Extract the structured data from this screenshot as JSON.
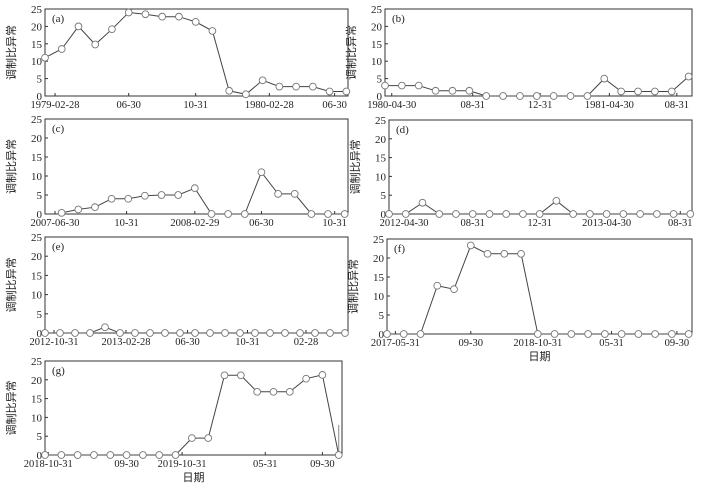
{
  "chart_data": [
    {
      "type": "line",
      "panel_label": "(a)",
      "ylabel": "调制比异常",
      "xlabel": "",
      "ylim": [
        0,
        25
      ],
      "yticks": [
        0,
        5,
        10,
        15,
        20,
        25
      ],
      "xlim": [
        0,
        18.1
      ],
      "x": [
        0,
        1,
        2,
        3,
        4,
        5,
        6,
        7,
        8,
        9,
        10,
        11,
        12,
        13,
        14,
        15,
        16,
        17,
        18
      ],
      "values": [
        11,
        13.5,
        20,
        14.8,
        19.2,
        24,
        23.5,
        22.8,
        22.8,
        21.3,
        18.7,
        1.5,
        0.5,
        4.5,
        2.7,
        2.7,
        2.7,
        1.3,
        1.3
      ],
      "xticks": [
        0.6,
        5,
        9,
        13.4,
        17.3
      ],
      "xticklabels": [
        "1979-02-28",
        "06-30",
        "10-31",
        "1980-02-28",
        "06-30"
      ]
    },
    {
      "type": "line",
      "panel_label": "(b)",
      "ylabel": "调制比异常",
      "xlabel": "",
      "ylim": [
        0,
        25
      ],
      "yticks": [
        0,
        5,
        10,
        15,
        20,
        25
      ],
      "xlim": [
        0,
        18.2
      ],
      "x": [
        0,
        1,
        2,
        3,
        4,
        5,
        6,
        7,
        8,
        9,
        10,
        11,
        12,
        13,
        14,
        15,
        16,
        17,
        18
      ],
      "values": [
        3,
        3,
        3,
        1.5,
        1.5,
        1.5,
        0,
        0,
        0,
        0,
        0,
        0,
        0,
        5,
        1.3,
        1.3,
        1.3,
        1.3,
        5.6
      ],
      "xticks": [
        0.4,
        5.2,
        9.2,
        13.3,
        17.3
      ],
      "xticklabels": [
        "1980-04-30",
        "08-31",
        "12-31",
        "1981-04-30",
        "08-31"
      ]
    },
    {
      "type": "line",
      "panel_label": "(c)",
      "ylabel": "调制比异常",
      "xlabel": "",
      "ylim": [
        0,
        25
      ],
      "yticks": [
        0,
        5,
        10,
        15,
        20,
        25
      ],
      "xlim": [
        0,
        18.2
      ],
      "x": [
        1,
        2,
        3,
        4,
        5,
        6,
        7,
        8,
        9,
        10,
        11,
        12,
        13,
        14,
        15,
        16,
        17,
        18
      ],
      "values": [
        0.3,
        1.2,
        1.8,
        4,
        4,
        4.8,
        5,
        5,
        6.8,
        0,
        0,
        0,
        11,
        5.3,
        5.3,
        0,
        0,
        0
      ],
      "xticks": [
        0.6,
        4.9,
        9,
        13,
        17.4
      ],
      "xticklabels": [
        "2007-06-30",
        "10-31",
        "2008-02-29",
        "06-30",
        "10-31"
      ]
    },
    {
      "type": "line",
      "panel_label": "(d)",
      "ylabel": "调制比异常",
      "xlabel": "",
      "ylim": [
        0,
        25
      ],
      "yticks": [
        0,
        5,
        10,
        15,
        20,
        25
      ],
      "xlim": [
        0,
        18.1
      ],
      "x": [
        0,
        1,
        2,
        3,
        4,
        5,
        6,
        7,
        8,
        9,
        10,
        11,
        12,
        13,
        14,
        15,
        16,
        17,
        18
      ],
      "values": [
        0,
        0,
        3,
        0,
        0,
        0,
        0,
        0,
        0,
        0,
        3.5,
        0,
        0,
        0,
        0,
        0,
        0,
        0,
        0
      ],
      "xticks": [
        0.9,
        5,
        9,
        13,
        17.4
      ],
      "xticklabels": [
        "2012-04-30",
        "08-31",
        "12-31",
        "2013-04-30",
        "08-31"
      ]
    },
    {
      "type": "line",
      "panel_label": "(e)",
      "ylabel": "调制比异常",
      "xlabel": "",
      "ylim": [
        0,
        25
      ],
      "yticks": [
        0,
        5,
        10,
        15,
        20,
        25
      ],
      "xlim": [
        0,
        20.2
      ],
      "x": [
        0,
        1,
        2,
        3,
        4,
        5,
        6,
        7,
        8,
        9,
        10,
        11,
        12,
        13,
        14,
        15,
        16,
        17,
        18,
        19,
        20
      ],
      "values": [
        0,
        0,
        0,
        0,
        1.5,
        0,
        0,
        0,
        0,
        0,
        0,
        0,
        0,
        0,
        0,
        0,
        0,
        0,
        0,
        0,
        0
      ],
      "xticks": [
        0.6,
        5.4,
        9.5,
        13.5,
        17.4
      ],
      "xticklabels": [
        "2012-10-31",
        "2013-02-28",
        "06-30",
        "10-31",
        "02-28"
      ]
    },
    {
      "type": "line",
      "panel_label": "(f)",
      "ylabel": "调制比异常",
      "xlabel": "日期",
      "ylim": [
        0,
        25
      ],
      "yticks": [
        0,
        5,
        10,
        15,
        20,
        25
      ],
      "xlim": [
        0,
        18.2
      ],
      "x": [
        0,
        1,
        2,
        3,
        4,
        5,
        6,
        7,
        8,
        9,
        10,
        11,
        12,
        13,
        14,
        15,
        16,
        17,
        18
      ],
      "values": [
        0,
        0,
        0,
        12.7,
        11.8,
        23.3,
        21.1,
        21.1,
        21.1,
        0,
        0,
        0,
        0,
        0,
        0,
        0,
        0,
        0,
        0
      ],
      "xticks": [
        0.5,
        5,
        9,
        13.4,
        17.3
      ],
      "xticklabels": [
        "2017-05-31",
        "09-30",
        "2018-10-31",
        "05-31",
        "09-30"
      ]
    },
    {
      "type": "line",
      "panel_label": "(g)",
      "ylabel": "调制比异常",
      "xlabel": "日期",
      "ylim": [
        0,
        25
      ],
      "yticks": [
        0,
        5,
        10,
        15,
        20,
        25
      ],
      "xlim": [
        0,
        18.2
      ],
      "x": [
        0,
        1,
        2,
        3,
        4,
        5,
        6,
        7,
        8,
        9,
        10,
        11,
        12,
        13,
        14,
        15,
        16,
        17,
        18
      ],
      "values": [
        0,
        0,
        0,
        0,
        0,
        0,
        0,
        0,
        0,
        4.5,
        4.5,
        21.2,
        21.2,
        16.8,
        16.8,
        16.8,
        20.3,
        21.3,
        0
      ],
      "error_bar": {
        "x": 18,
        "high": 8
      },
      "xticks": [
        0.2,
        5,
        8.4,
        13.5,
        17
      ],
      "xticklabels": [
        "2018-10-31",
        "09-30",
        "2019-10-31",
        "05-31",
        "09-30"
      ]
    }
  ]
}
